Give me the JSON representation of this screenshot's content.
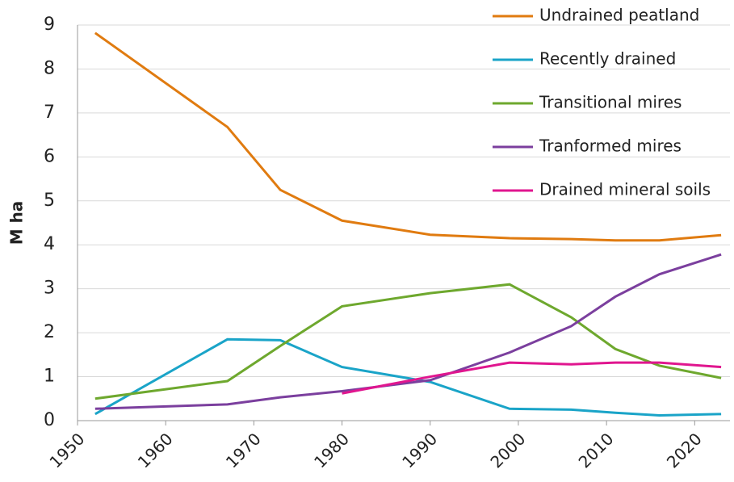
{
  "chart_data": {
    "type": "line",
    "y_label": "M ha",
    "x": [
      1952,
      1967,
      1973,
      1980,
      1990,
      1999,
      2006,
      2011,
      2016,
      2023
    ],
    "series": [
      {
        "name": "Undrained peatland",
        "color": "#e07b10",
        "values": [
          8.82,
          6.68,
          5.25,
          4.55,
          4.23,
          4.15,
          4.13,
          4.1,
          4.1,
          4.22
        ]
      },
      {
        "name": "Recently drained",
        "color": "#1aa4c8",
        "values": [
          0.15,
          1.85,
          1.83,
          1.22,
          0.88,
          0.27,
          0.25,
          0.18,
          0.12,
          0.15
        ]
      },
      {
        "name": "Transitional mires",
        "color": "#6ea82e",
        "values": [
          0.5,
          0.9,
          1.7,
          2.6,
          2.9,
          3.1,
          2.35,
          1.63,
          1.25,
          0.97
        ]
      },
      {
        "name": "Tranformed mires",
        "color": "#7b3f9e",
        "values": [
          0.27,
          0.37,
          0.53,
          0.67,
          0.92,
          1.55,
          2.15,
          2.82,
          3.33,
          3.78
        ]
      },
      {
        "name": "Drained mineral soils",
        "color": "#e0168f",
        "values": [
          null,
          null,
          null,
          0.62,
          1.0,
          1.32,
          1.28,
          1.32,
          1.32,
          1.22
        ]
      }
    ],
    "xlim": [
      1950,
      2024
    ],
    "xticks": [
      1950,
      1960,
      1970,
      1980,
      1990,
      2000,
      2010,
      2020
    ],
    "ylim": [
      0,
      9
    ],
    "yticks": [
      0,
      1,
      2,
      3,
      4,
      5,
      6,
      7,
      8,
      9
    ],
    "grid": true,
    "legend": "top-right"
  }
}
